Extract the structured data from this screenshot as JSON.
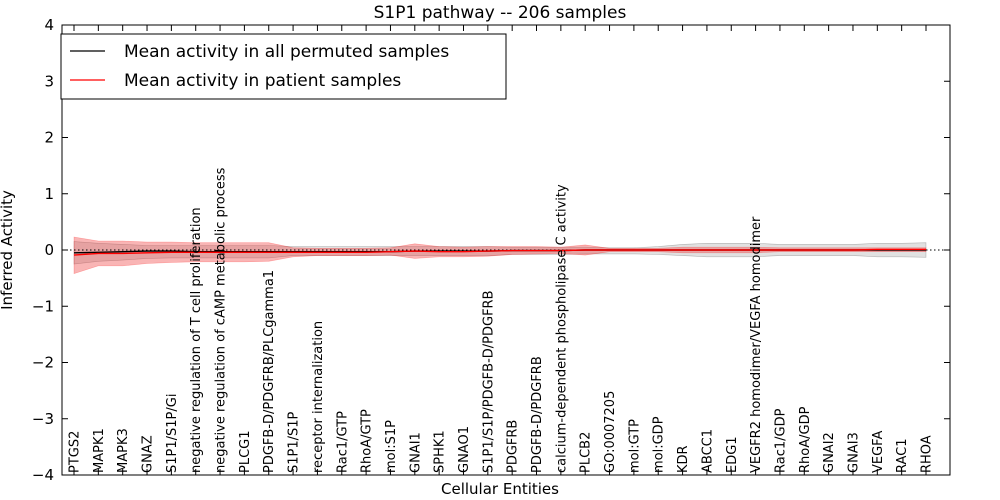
{
  "chart_data": {
    "type": "line",
    "title": "S1P1 pathway -- 206 samples",
    "xlabel": "Cellular Entities",
    "ylabel": "Inferred Activity",
    "ylim": [
      -4,
      4
    ],
    "yticks": [
      -4,
      -3,
      -2,
      -1,
      0,
      1,
      2,
      3,
      4
    ],
    "ytick_labels": [
      "−4",
      "−3",
      "−2",
      "−1",
      "0",
      "1",
      "2",
      "3",
      "4"
    ],
    "grid": false,
    "legend_position": "top-left",
    "categories": [
      "PTGS2",
      "MAPK1",
      "MAPK3",
      "GNAZ",
      "S1P1/S1P/Gi",
      "negative regulation of T cell proliferation",
      "negative regulation of cAMP metabolic process",
      "PLCG1",
      "PDGFB-D/PDGFRB/PLCgamma1",
      "S1P1/S1P",
      "receptor internalization",
      "Rac1/GTP",
      "RhoA/GTP",
      "mol:S1P",
      "GNAI1",
      "SPHK1",
      "GNAO1",
      "S1P1/S1P/PDGFB-D/PDGFRB",
      "PDGFRB",
      "PDGFB-D/PDGFRB",
      "calcium-dependent phospholipase C activity",
      "PLCB2",
      "GO:0007205",
      "mol:GTP",
      "mol:GDP",
      "KDR",
      "ABCC1",
      "EDG1",
      "VEGFR2 homodimer/VEGFA homodimer",
      "Rac1/GDP",
      "RhoA/GDP",
      "GNAI2",
      "GNAI3",
      "VEGFA",
      "RAC1",
      "RHOA"
    ],
    "series": [
      {
        "name": "Mean activity in all permuted samples",
        "color": "#000000",
        "values": [
          -0.05,
          -0.04,
          -0.03,
          -0.02,
          -0.02,
          -0.03,
          -0.03,
          -0.03,
          -0.03,
          -0.03,
          -0.03,
          -0.03,
          -0.03,
          -0.03,
          -0.02,
          -0.02,
          -0.02,
          -0.02,
          -0.01,
          -0.01,
          -0.01,
          0.0,
          0.0,
          0.0,
          0.0,
          0.0,
          0.0,
          0.0,
          0.0,
          0.0,
          0.0,
          0.0,
          0.0,
          0.0,
          0.0,
          0.0
        ],
        "lower": [
          -0.25,
          -0.2,
          -0.18,
          -0.15,
          -0.14,
          -0.14,
          -0.14,
          -0.14,
          -0.14,
          -0.1,
          -0.1,
          -0.1,
          -0.1,
          -0.1,
          -0.1,
          -0.1,
          -0.1,
          -0.1,
          -0.08,
          -0.08,
          -0.08,
          -0.07,
          -0.07,
          -0.07,
          -0.08,
          -0.1,
          -0.12,
          -0.12,
          -0.12,
          -0.1,
          -0.1,
          -0.1,
          -0.1,
          -0.12,
          -0.12,
          -0.13
        ],
        "upper": [
          0.15,
          0.12,
          0.1,
          0.08,
          0.08,
          0.08,
          0.08,
          0.08,
          0.08,
          0.06,
          0.06,
          0.06,
          0.06,
          0.06,
          0.06,
          0.06,
          0.06,
          0.06,
          0.05,
          0.05,
          0.05,
          0.05,
          0.04,
          0.04,
          0.06,
          0.1,
          0.12,
          0.12,
          0.12,
          0.1,
          0.1,
          0.1,
          0.1,
          0.12,
          0.12,
          0.13
        ]
      },
      {
        "name": "Mean activity in patient samples",
        "color": "#ff0000",
        "values": [
          -0.09,
          -0.06,
          -0.06,
          -0.05,
          -0.04,
          -0.04,
          -0.04,
          -0.04,
          -0.04,
          -0.04,
          -0.04,
          -0.04,
          -0.04,
          -0.03,
          -0.02,
          -0.03,
          -0.03,
          -0.02,
          -0.01,
          -0.01,
          -0.01,
          0.0,
          0.0,
          0.0,
          0.0,
          0.0,
          0.0,
          0.0,
          0.0,
          0.0,
          0.0,
          0.0,
          0.0,
          0.01,
          0.01,
          0.01
        ],
        "lower": [
          -0.42,
          -0.28,
          -0.28,
          -0.24,
          -0.22,
          -0.21,
          -0.21,
          -0.21,
          -0.2,
          -0.12,
          -0.1,
          -0.1,
          -0.1,
          -0.09,
          -0.15,
          -0.12,
          -0.12,
          -0.11,
          -0.08,
          -0.07,
          -0.06,
          -0.09,
          -0.03,
          -0.03,
          -0.03,
          -0.05,
          -0.05,
          -0.05,
          -0.05,
          -0.03,
          -0.03,
          -0.03,
          -0.03,
          -0.03,
          -0.03,
          -0.03
        ],
        "upper": [
          0.23,
          0.16,
          0.16,
          0.14,
          0.14,
          0.13,
          0.13,
          0.13,
          0.13,
          0.04,
          0.03,
          0.03,
          0.03,
          0.04,
          0.11,
          0.06,
          0.05,
          0.06,
          0.06,
          0.06,
          0.05,
          0.09,
          0.03,
          0.03,
          0.03,
          0.05,
          0.05,
          0.05,
          0.05,
          0.04,
          0.04,
          0.04,
          0.04,
          0.04,
          0.04,
          0.04
        ]
      }
    ],
    "reference_line": 0
  }
}
